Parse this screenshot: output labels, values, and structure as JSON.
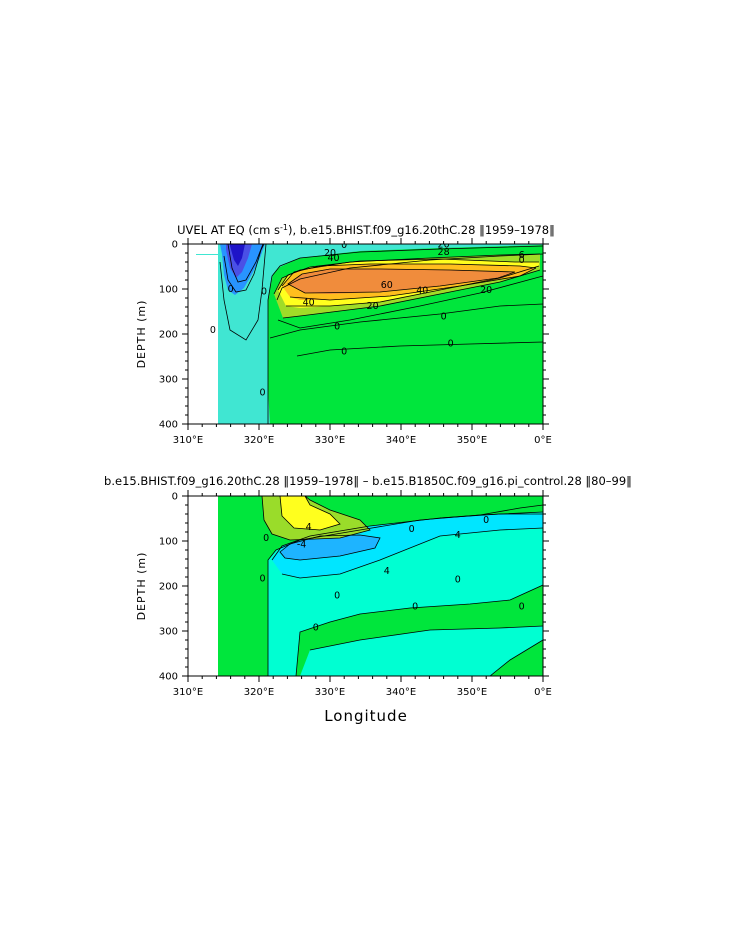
{
  "chart_data": [
    {
      "type": "heatmap",
      "subtype": "filled-contour",
      "title_prefix": "UVEL AT EQ (cm s",
      "title_exp": "-1",
      "title_suffix": "), b.e15.BHIST.f09_g16.20thC.28  ‖1959–1978‖",
      "ylabel": "DEPTH (m)",
      "xlabel": "",
      "xlim": [
        310,
        360
      ],
      "ylim": [
        0,
        400
      ],
      "y_inverted": true,
      "xticks": [
        "310°E",
        "320°E",
        "330°E",
        "340°E",
        "350°E",
        "0°E"
      ],
      "yticks": [
        "0",
        "100",
        "200",
        "300",
        "400"
      ],
      "contour_interval": 10,
      "colors": {
        "land": "#ffffff",
        "neg_strong": "#1e14c8",
        "neg": "#4a50e6",
        "neg_weak": "#2894ff",
        "zero_neg": "#40e6d2",
        "zero_pos": "#00e63c",
        "pos_20": "#a0dc28",
        "pos_30": "#ffff1e",
        "pos_40": "#ffbe1e",
        "pos_60": "#f08c3c"
      },
      "contour_labels": [
        {
          "text": "20",
          "x": 346,
          "y": 5
        },
        {
          "text": "0",
          "x": 332,
          "y": 7
        },
        {
          "text": "20",
          "x": 330,
          "y": 24
        },
        {
          "text": "40",
          "x": 330.5,
          "y": 35
        },
        {
          "text": "28",
          "x": 346,
          "y": 22
        },
        {
          "text": "6",
          "x": 357,
          "y": 29
        },
        {
          "text": "0",
          "x": 357,
          "y": 40
        },
        {
          "text": "60",
          "x": 338,
          "y": 95
        },
        {
          "text": "40",
          "x": 343,
          "y": 108
        },
        {
          "text": "20",
          "x": 352,
          "y": 107
        },
        {
          "text": "40",
          "x": 327,
          "y": 134
        },
        {
          "text": "20",
          "x": 336,
          "y": 142
        },
        {
          "text": "0",
          "x": 316,
          "y": 104
        },
        {
          "text": "0",
          "x": 320.7,
          "y": 110
        },
        {
          "text": "0",
          "x": 313.5,
          "y": 195
        },
        {
          "text": "0",
          "x": 331,
          "y": 188
        },
        {
          "text": "0",
          "x": 346,
          "y": 165
        },
        {
          "text": "0",
          "x": 332,
          "y": 243
        },
        {
          "text": "0",
          "x": 347,
          "y": 226
        },
        {
          "text": "0",
          "x": 320.5,
          "y": 334
        }
      ]
    },
    {
      "type": "heatmap",
      "subtype": "filled-contour",
      "title": "b.e15.BHIST.f09_g16.20thC.28  ‖1959–1978‖  –  b.e15.B1850C.f09_g16.pi_control.28  ‖80–99‖",
      "ylabel": "DEPTH (m)",
      "xlabel": "Longitude",
      "xlim": [
        310,
        360
      ],
      "ylim": [
        0,
        400
      ],
      "y_inverted": true,
      "xticks": [
        "310°E",
        "320°E",
        "330°E",
        "340°E",
        "350°E",
        "0°E"
      ],
      "yticks": [
        "0",
        "100",
        "200",
        "300",
        "400"
      ],
      "contour_interval": 2,
      "colors": {
        "land": "#ffffff",
        "neg_4": "#1eb4ff",
        "neg_2": "#00e6ff",
        "neg_0": "#00ffd2",
        "pos_0": "#00e63c",
        "pos_2": "#9adc2a",
        "pos_4": "#ffff1e"
      },
      "contour_labels": [
        {
          "text": "4",
          "x": 327,
          "y": 73
        },
        {
          "text": "0",
          "x": 352,
          "y": 58
        },
        {
          "text": "0",
          "x": 341.5,
          "y": 78
        },
        {
          "text": "4",
          "x": 348,
          "y": 91
        },
        {
          "text": "0",
          "x": 321,
          "y": 98
        },
        {
          "text": "-4",
          "x": 326,
          "y": 112
        },
        {
          "text": "0",
          "x": 320.5,
          "y": 188
        },
        {
          "text": "4",
          "x": 338,
          "y": 171
        },
        {
          "text": "0",
          "x": 348,
          "y": 190
        },
        {
          "text": "0",
          "x": 331,
          "y": 225
        },
        {
          "text": "0",
          "x": 342,
          "y": 250
        },
        {
          "text": "0",
          "x": 357,
          "y": 250
        },
        {
          "text": "0",
          "x": 328,
          "y": 297
        }
      ]
    }
  ]
}
